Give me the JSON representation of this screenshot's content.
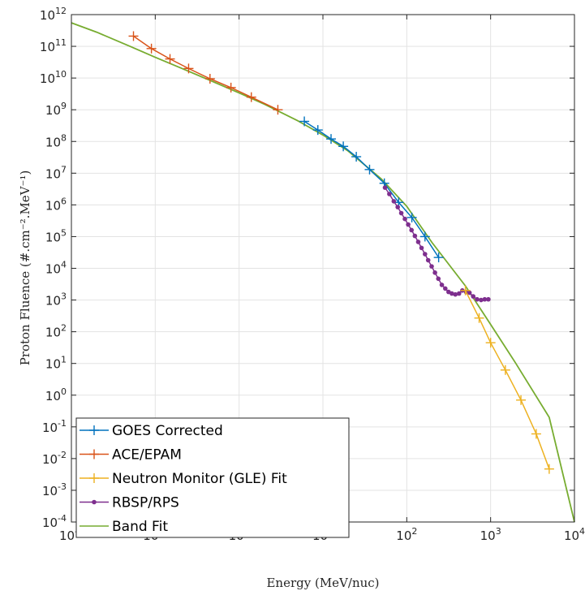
{
  "chart_data": {
    "type": "line",
    "xlabel": "Energy (MeV/nuc)",
    "ylabel": "Proton Fluence (#.cm⁻².MeV⁻¹)",
    "xscale": "log",
    "yscale": "log",
    "xlim": [
      0.01,
      10000
    ],
    "ylim": [
      0.0001,
      1000000000000
    ],
    "grid": true,
    "legend_position": "bottom-left",
    "x_ticks": [
      {
        "value": 0.01,
        "base": "10",
        "exp": "-2"
      },
      {
        "value": 0.1,
        "base": "10",
        "exp": "-1"
      },
      {
        "value": 1,
        "base": "10",
        "exp": "0"
      },
      {
        "value": 10,
        "base": "10",
        "exp": "1"
      },
      {
        "value": 100,
        "base": "10",
        "exp": "2"
      },
      {
        "value": 1000,
        "base": "10",
        "exp": "3"
      },
      {
        "value": 10000,
        "base": "10",
        "exp": "4"
      }
    ],
    "y_ticks": [
      {
        "value": 0.0001,
        "base": "10",
        "exp": "-4"
      },
      {
        "value": 0.001,
        "base": "10",
        "exp": "-3"
      },
      {
        "value": 0.01,
        "base": "10",
        "exp": "-2"
      },
      {
        "value": 0.1,
        "base": "10",
        "exp": "-1"
      },
      {
        "value": 1,
        "base": "10",
        "exp": "0"
      },
      {
        "value": 10,
        "base": "10",
        "exp": "1"
      },
      {
        "value": 100,
        "base": "10",
        "exp": "2"
      },
      {
        "value": 1000,
        "base": "10",
        "exp": "3"
      },
      {
        "value": 10000,
        "base": "10",
        "exp": "4"
      },
      {
        "value": 100000,
        "base": "10",
        "exp": "5"
      },
      {
        "value": 1000000,
        "base": "10",
        "exp": "6"
      },
      {
        "value": 10000000,
        "base": "10",
        "exp": "7"
      },
      {
        "value": 100000000,
        "base": "10",
        "exp": "8"
      },
      {
        "value": 1000000000,
        "base": "10",
        "exp": "9"
      },
      {
        "value": 10000000000,
        "base": "10",
        "exp": "10"
      },
      {
        "value": 100000000000,
        "base": "10",
        "exp": "11"
      },
      {
        "value": 1000000000000,
        "base": "10",
        "exp": "12"
      }
    ],
    "series": [
      {
        "name": "GOES Corrected",
        "color": "#0072BD",
        "marker": "plus",
        "x": [
          6,
          8.7,
          12.5,
          17.5,
          25,
          36,
          54,
          80,
          115,
          165,
          240
        ],
        "y": [
          430000000.0,
          230000000.0,
          120000000.0,
          70000000.0,
          33000000.0,
          13000000.0,
          4800000.0,
          1200000.0,
          400000.0,
          100000.0,
          22000.0
        ]
      },
      {
        "name": "ACE/EPAM",
        "color": "#D95319",
        "marker": "plus",
        "x": [
          0.055,
          0.09,
          0.15,
          0.25,
          0.45,
          0.8,
          1.4,
          2.9
        ],
        "y": [
          210000000000.0,
          85000000000.0,
          40000000000.0,
          20000000000.0,
          9500000000.0,
          5000000000.0,
          2500000000.0,
          1000000000.0
        ]
      },
      {
        "name": "Neutron Monitor (GLE) Fit",
        "color": "#EDB120",
        "marker": "plus",
        "x": [
          500,
          730,
          1000,
          1500,
          2300,
          3500,
          5000
        ],
        "y": [
          2000,
          270,
          45,
          6.2,
          0.7,
          0.06,
          0.0047
        ]
      },
      {
        "name": "RBSP/RPS",
        "color": "#7E2F8E",
        "marker": "dot",
        "x": [
          55,
          62,
          70,
          78,
          86,
          95,
          104,
          114,
          125,
          137,
          150,
          165,
          180,
          198,
          217,
          238,
          262,
          288,
          315,
          345,
          380,
          420,
          460,
          510,
          560,
          620,
          690,
          770,
          850,
          940
        ],
        "y": [
          3500000.0,
          2200000.0,
          1300000.0,
          850000.0,
          550000.0,
          360000.0,
          240000.0,
          160000.0,
          105000.0,
          68000.0,
          44000.0,
          28000.0,
          18000.0,
          11500.0,
          7300.0,
          4700.0,
          3000.0,
          2300.0,
          1800.0,
          1600.0,
          1500.0,
          1600.0,
          2000.0,
          1800.0,
          1700.0,
          1300.0,
          1050.0,
          1000.0,
          1050.0,
          1050.0
        ]
      },
      {
        "name": "Band Fit",
        "color": "#77AC30",
        "marker": "none",
        "x": [
          0.01,
          0.02,
          0.05,
          0.1,
          0.2,
          0.5,
          1,
          2,
          5,
          10,
          20,
          50,
          100,
          200,
          500,
          1000,
          2000,
          5000,
          10000
        ],
        "y": [
          550000000000.0,
          280000000000.0,
          100000000000.0,
          45000000000.0,
          21000000000.0,
          7500000000.0,
          3400000000.0,
          1500000000.0,
          450000000.0,
          160000000.0,
          50000000.0,
          6500000.0,
          900000.0,
          65000.0,
          2800.0,
          170.0,
          10,
          0.2,
          0.0001
        ]
      }
    ]
  }
}
